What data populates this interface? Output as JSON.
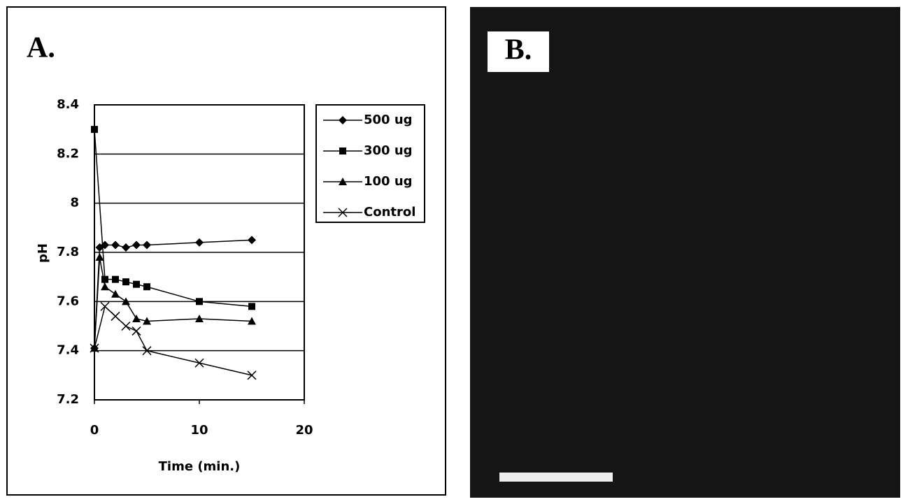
{
  "chart_data": {
    "type": "line",
    "panel_label": "A.",
    "ylabel": "pH",
    "xlabel": "Time (min.)",
    "xlim": [
      0,
      20
    ],
    "xticks": [
      0,
      10,
      20
    ],
    "ylim": [
      7.2,
      8.4
    ],
    "yticks": [
      7.2,
      7.4,
      7.6,
      7.8,
      8,
      8.2,
      8.4
    ],
    "grid": true,
    "series": [
      {
        "name": "500 ug",
        "color": "#000000",
        "marker": "diamond",
        "x": [
          0,
          0.5,
          1,
          2,
          3,
          4,
          5,
          10,
          15
        ],
        "values": [
          7.41,
          7.82,
          7.83,
          7.83,
          7.82,
          7.83,
          7.83,
          7.84,
          7.85
        ]
      },
      {
        "name": "300 ug",
        "color": "#000000",
        "marker": "square",
        "x": [
          0,
          1,
          2,
          3,
          4,
          5,
          10,
          15
        ],
        "values": [
          8.3,
          7.69,
          7.69,
          7.68,
          7.67,
          7.66,
          7.6,
          7.58
        ]
      },
      {
        "name": "100 ug",
        "color": "#000000",
        "marker": "triangle",
        "x": [
          0,
          0.5,
          1,
          2,
          3,
          4,
          5,
          10,
          15
        ],
        "values": [
          7.41,
          7.78,
          7.66,
          7.63,
          7.6,
          7.53,
          7.52,
          7.53,
          7.52
        ]
      },
      {
        "name": "Control",
        "color": "#000000",
        "marker": "cross",
        "x": [
          0,
          1,
          2,
          3,
          4,
          5,
          10,
          15
        ],
        "values": [
          7.41,
          7.58,
          7.54,
          7.5,
          7.48,
          7.4,
          7.35,
          7.3
        ]
      }
    ]
  },
  "panel_b": {
    "label": "B."
  }
}
